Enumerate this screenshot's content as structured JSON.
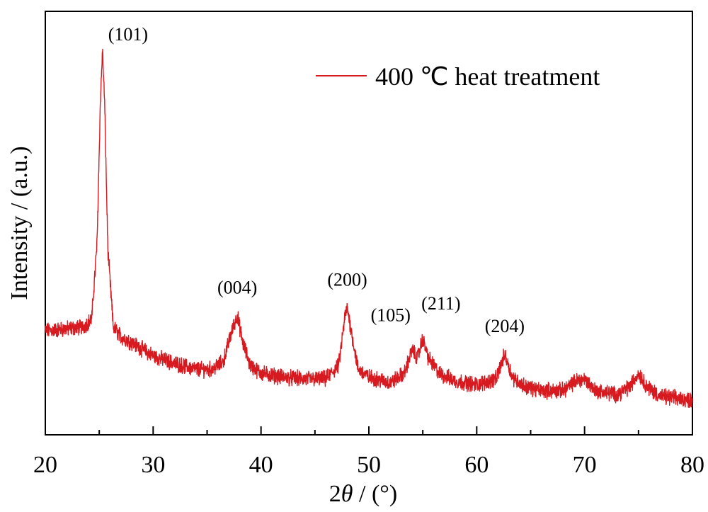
{
  "chart_data": {
    "type": "line",
    "xlabel": "2θ / (°)",
    "xlabel_prefix": "2",
    "xlabel_symbol": "θ",
    "xlabel_suffix": " / (°)",
    "ylabel": "Intensity / (a.u.)",
    "xlim": [
      20,
      80
    ],
    "ylim": [
      0,
      100
    ],
    "x_ticks": [
      "20",
      "30",
      "40",
      "50",
      "60",
      "70",
      "80"
    ],
    "y_ticks_labeled": false,
    "grid": false,
    "legend_position": "top-right",
    "series": [
      {
        "name": "400 ℃ heat treatment",
        "color": "#d71920",
        "x": [
          20,
          22,
          23.5,
          24.3,
          24.8,
          25.1,
          25.3,
          25.5,
          25.8,
          26.3,
          27,
          28,
          30,
          32,
          34,
          35.5,
          36.5,
          37.3,
          37.8,
          38.3,
          39,
          40,
          42,
          44,
          46,
          47.2,
          47.8,
          48.0,
          48.3,
          49,
          50,
          52,
          53.3,
          54.0,
          54.5,
          55.0,
          55.5,
          56.5,
          58,
          60,
          61.8,
          62.6,
          63.3,
          64.5,
          66,
          68,
          69.2,
          70,
          71,
          73,
          74.2,
          75,
          75.8,
          77,
          78.5,
          80
        ],
        "y": [
          27,
          27.5,
          28,
          30,
          50,
          86,
          100,
          86,
          48,
          28,
          25.5,
          24,
          20.5,
          18.5,
          17,
          17,
          19,
          27,
          31,
          24,
          18,
          16,
          15,
          14.5,
          14.5,
          18,
          31,
          33,
          28,
          17,
          15,
          13.5,
          16,
          22,
          20,
          25,
          20,
          16,
          14,
          13,
          14.5,
          21,
          15,
          12.5,
          11.5,
          11.5,
          14,
          14.5,
          11.5,
          10.5,
          12.5,
          16,
          12.5,
          10,
          9.5,
          9
        ]
      }
    ],
    "annotations": [
      {
        "text": "(101)",
        "x": 25.3
      },
      {
        "text": "(004)",
        "x": 37.8
      },
      {
        "text": "(200)",
        "x": 48.0
      },
      {
        "text": "(105)",
        "x": 54.0
      },
      {
        "text": "(211)",
        "x": 55.0
      },
      {
        "text": "(204)",
        "x": 62.6
      }
    ]
  }
}
